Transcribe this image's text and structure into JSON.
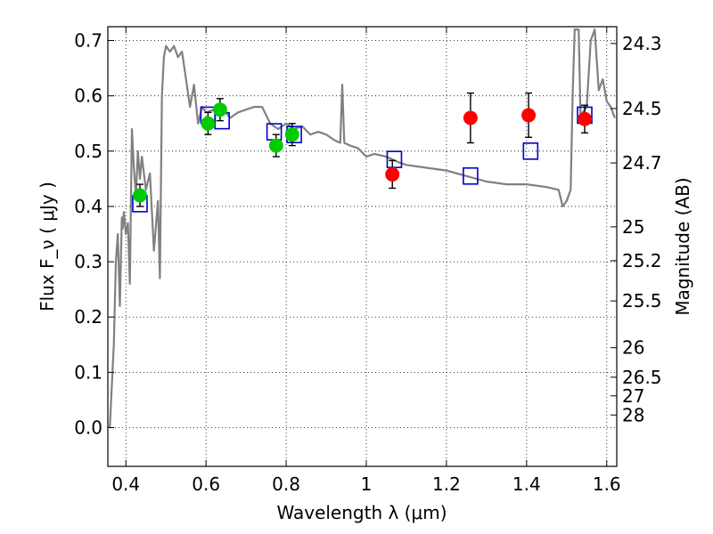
{
  "chart_data": {
    "type": "scatter",
    "title": "",
    "xlabel": "Wavelength  λ (μm)",
    "ylabel": "Flux  F_ν  ( μJy )",
    "y2label": "Magnitude (AB)",
    "xlim": [
      0.355,
      1.625
    ],
    "ylim": [
      -0.07,
      0.725
    ],
    "grid": true,
    "x_ticks": [
      0.4,
      0.6,
      0.8,
      1.0,
      1.2,
      1.4,
      1.6
    ],
    "x_tick_labels": [
      "0.4",
      "0.6",
      "0.8",
      "1",
      "1.2",
      "1.4",
      "1.6"
    ],
    "y_ticks": [
      0.0,
      0.1,
      0.2,
      0.3,
      0.4,
      0.5,
      0.6,
      0.7
    ],
    "y_tick_labels": [
      "0.0",
      "0.1",
      "0.2",
      "0.3",
      "0.4",
      "0.5",
      "0.6",
      "0.7"
    ],
    "y2_ticks": [
      {
        "flux": 0.6946,
        "label": "24.3"
      },
      {
        "flux": 0.577,
        "label": "24.5"
      },
      {
        "flux": 0.4787,
        "label": "24.7"
      },
      {
        "flux": 0.3631,
        "label": "25"
      },
      {
        "flux": 0.3019,
        "label": "25.2"
      },
      {
        "flux": 0.2291,
        "label": "25.5"
      },
      {
        "flux": 0.1445,
        "label": "26"
      },
      {
        "flux": 0.0912,
        "label": "26.5"
      },
      {
        "flux": 0.0575,
        "label": "27"
      },
      {
        "flux": 0.0229,
        "label": "28"
      }
    ],
    "colors": {
      "model": "#808080",
      "optical": "#00cc00",
      "nir": "#ff0000",
      "model_box": "#0000cc",
      "error": "#000000"
    },
    "series": [
      {
        "kind": "line",
        "x": [
          0.36,
          0.37,
          0.375,
          0.38,
          0.385,
          0.39,
          0.392,
          0.395,
          0.4,
          0.405,
          0.41,
          0.415,
          0.42,
          0.425,
          0.43,
          0.435,
          0.44,
          0.45,
          0.46,
          0.47,
          0.48,
          0.485,
          0.49,
          0.495,
          0.5,
          0.51,
          0.52,
          0.53,
          0.54,
          0.55,
          0.56,
          0.57,
          0.58,
          0.59,
          0.6,
          0.62,
          0.64,
          0.66,
          0.68,
          0.7,
          0.72,
          0.74,
          0.76,
          0.78,
          0.8,
          0.82,
          0.84,
          0.86,
          0.88,
          0.9,
          0.92,
          0.935,
          0.94,
          0.945,
          0.96,
          0.98,
          1.0,
          1.02,
          1.05,
          1.08,
          1.1,
          1.15,
          1.2,
          1.25,
          1.3,
          1.35,
          1.4,
          1.45,
          1.48,
          1.49,
          1.5,
          1.51,
          1.515,
          1.52,
          1.53,
          1.535,
          1.54,
          1.55,
          1.56,
          1.57,
          1.58,
          1.59,
          1.6,
          1.61,
          1.62
        ],
        "y": [
          0.0,
          0.15,
          0.3,
          0.35,
          0.22,
          0.38,
          0.36,
          0.39,
          0.35,
          0.37,
          0.26,
          0.54,
          0.47,
          0.42,
          0.5,
          0.45,
          0.49,
          0.43,
          0.46,
          0.32,
          0.41,
          0.27,
          0.6,
          0.67,
          0.69,
          0.68,
          0.69,
          0.67,
          0.68,
          0.63,
          0.58,
          0.62,
          0.55,
          0.58,
          0.57,
          0.575,
          0.58,
          0.56,
          0.57,
          0.575,
          0.58,
          0.58,
          0.55,
          0.54,
          0.55,
          0.54,
          0.545,
          0.53,
          0.535,
          0.53,
          0.52,
          0.515,
          0.62,
          0.515,
          0.51,
          0.505,
          0.49,
          0.495,
          0.49,
          0.48,
          0.475,
          0.47,
          0.465,
          0.455,
          0.445,
          0.44,
          0.44,
          0.435,
          0.43,
          0.4,
          0.41,
          0.43,
          0.6,
          0.72,
          0.72,
          0.55,
          0.57,
          0.58,
          0.7,
          0.72,
          0.61,
          0.63,
          0.59,
          0.58,
          0.56
        ]
      },
      {
        "kind": "model-boxes",
        "x": [
          0.435,
          0.605,
          0.64,
          0.77,
          0.82,
          1.07,
          1.26,
          1.41,
          1.545
        ],
        "y": [
          0.405,
          0.565,
          0.555,
          0.535,
          0.53,
          0.485,
          0.455,
          0.5,
          0.565
        ]
      },
      {
        "kind": "points-optical",
        "x": [
          0.435,
          0.605,
          0.635,
          0.775,
          0.815
        ],
        "y": [
          0.42,
          0.55,
          0.575,
          0.51,
          0.53
        ],
        "yerr": [
          0.02,
          0.02,
          0.02,
          0.02,
          0.02
        ]
      },
      {
        "kind": "points-nir",
        "x": [
          1.065,
          1.26,
          1.405,
          1.545
        ],
        "y": [
          0.458,
          0.56,
          0.565,
          0.558
        ],
        "yerr": [
          0.025,
          0.045,
          0.04,
          0.025
        ]
      }
    ]
  }
}
